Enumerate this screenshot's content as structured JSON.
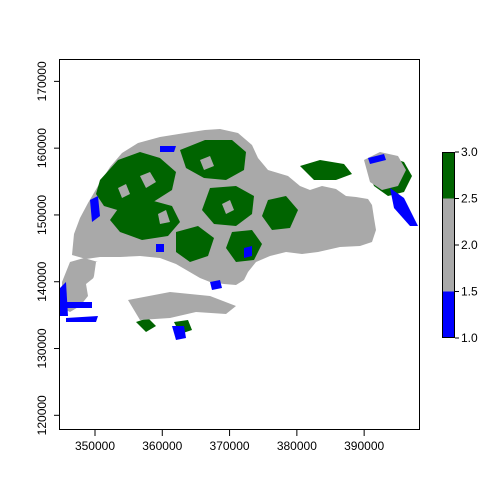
{
  "chart_data": {
    "type": "heatmap",
    "title": "",
    "xlabel": "",
    "ylabel": "",
    "x_ticks": [
      {
        "value": 350000,
        "label": "350000"
      },
      {
        "value": 360000,
        "label": "360000"
      },
      {
        "value": 370000,
        "label": "370000"
      },
      {
        "value": 380000,
        "label": "380000"
      },
      {
        "value": 390000,
        "label": "390000"
      }
    ],
    "y_ticks": [
      {
        "value": 120000,
        "label": "120000"
      },
      {
        "value": 130000,
        "label": "130000"
      },
      {
        "value": 140000,
        "label": "140000"
      },
      {
        "value": 150000,
        "label": "150000"
      },
      {
        "value": 160000,
        "label": "160000"
      },
      {
        "value": 170000,
        "label": "170000"
      }
    ],
    "xlim": [
      344800,
      398300
    ],
    "ylim": [
      117800,
      173200
    ],
    "legend": {
      "position": "right",
      "range": [
        1.0,
        3.0
      ],
      "ticks": [
        {
          "value": 1.0,
          "label": "1.0"
        },
        {
          "value": 1.5,
          "label": "1.5"
        },
        {
          "value": 2.0,
          "label": "2.0"
        },
        {
          "value": 2.5,
          "label": "2.5"
        },
        {
          "value": 3.0,
          "label": "3.0"
        }
      ],
      "bins": [
        {
          "from": 1.0,
          "to": 1.5,
          "color": "#0000ff"
        },
        {
          "from": 1.5,
          "to": 2.5,
          "color": "#a9a9a9"
        },
        {
          "from": 2.5,
          "to": 3.0,
          "color": "#006400"
        }
      ]
    }
  }
}
